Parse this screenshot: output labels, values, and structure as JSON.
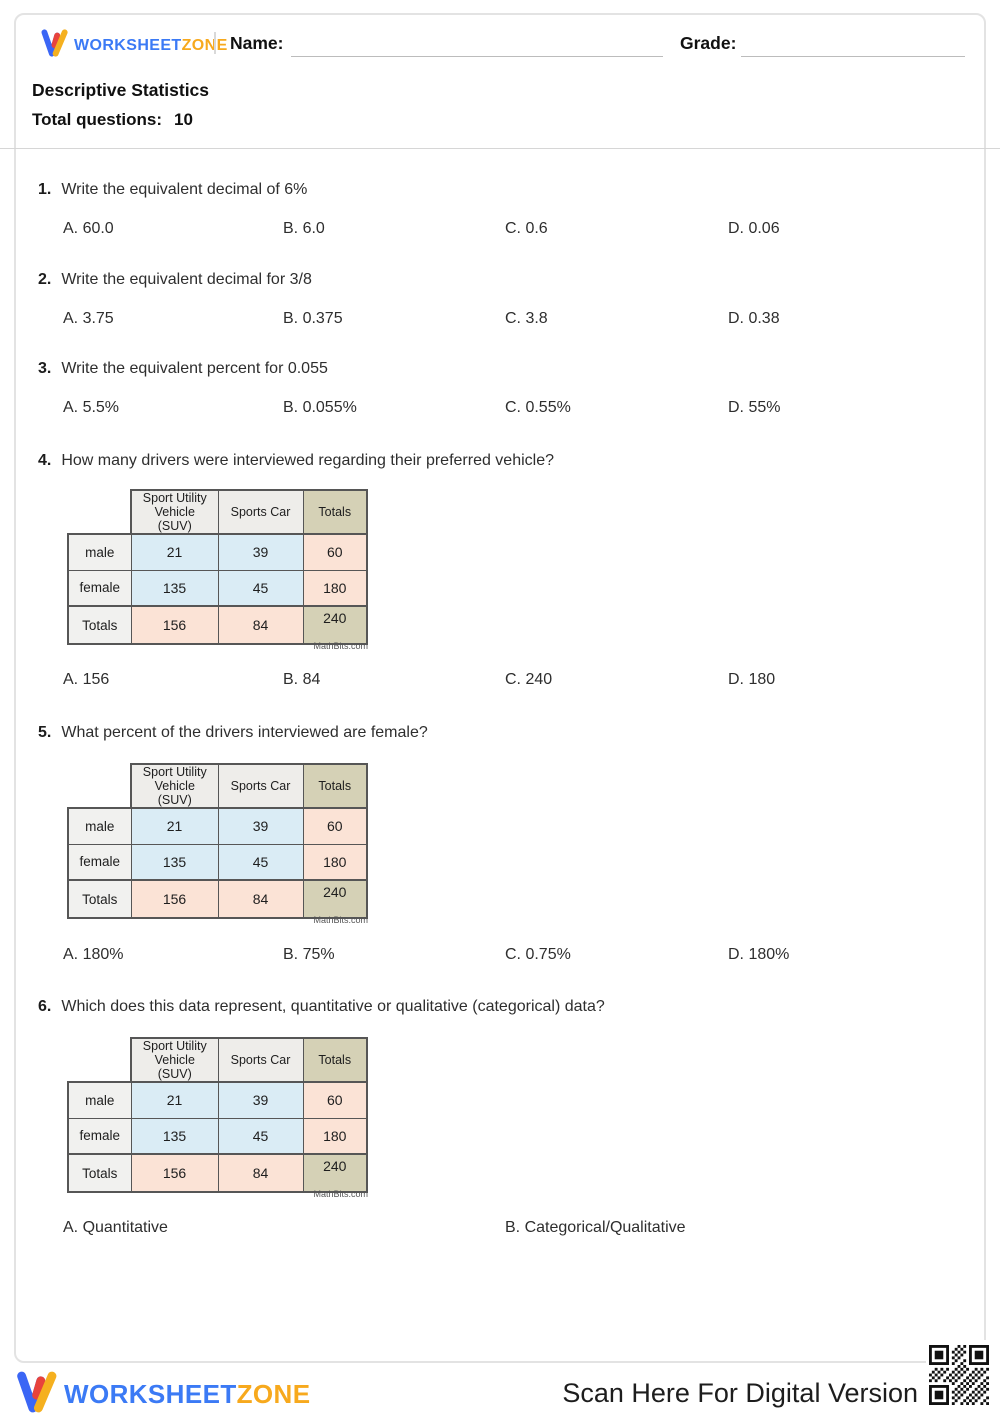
{
  "header": {
    "brand": {
      "word1": "WORKSHEET",
      "word2": "ZONE"
    },
    "name_label": "Name:",
    "grade_label": "Grade:"
  },
  "meta": {
    "title": "Descriptive Statistics",
    "total_questions_label": "Total questions:",
    "total_questions_value": "10"
  },
  "vehicle_table": {
    "col_headers": [
      "Sport Utility Vehicle (SUV)",
      "Sports Car",
      "Totals"
    ],
    "rows": [
      {
        "label": "male",
        "values": [
          "21",
          "39",
          "60"
        ]
      },
      {
        "label": "female",
        "values": [
          "135",
          "45",
          "180"
        ]
      },
      {
        "label": "Totals",
        "values": [
          "156",
          "84",
          "240"
        ]
      }
    ],
    "attribution": "MathBits.com"
  },
  "questions": [
    {
      "number": "1.",
      "text": "Write the equivalent decimal of 6%",
      "options": [
        "A. 60.0",
        "B. 6.0",
        "C. 0.6",
        "D. 0.06"
      ]
    },
    {
      "number": "2.",
      "text": "Write the equivalent decimal for 3/8",
      "options": [
        "A. 3.75",
        "B. 0.375",
        "C. 3.8",
        "D. 0.38"
      ]
    },
    {
      "number": "3.",
      "text": "Write the equivalent percent for 0.055",
      "options": [
        "A. 5.5%",
        "B. 0.055%",
        "C. 0.55%",
        "D. 55%"
      ]
    },
    {
      "number": "4.",
      "text": "How many drivers were interviewed regarding their preferred vehicle?",
      "options": [
        "A. 156",
        "B. 84",
        "C. 240",
        "D. 180"
      ]
    },
    {
      "number": "5.",
      "text": "What percent of the drivers interviewed are female?",
      "options": [
        "A. 180%",
        "B. 75%",
        "C. 0.75%",
        "D. 180%"
      ]
    },
    {
      "number": "6.",
      "text": "Which does this data represent, quantitative or qualitative (categorical) data?",
      "options": [
        "A. Quantitative",
        "B. Categorical/Qualitative"
      ]
    }
  ],
  "footer": {
    "brand": {
      "word1": "WORKSHEET",
      "word2": "ZONE"
    },
    "scan_text": "Scan Here For Digital Version"
  },
  "colors": {
    "brand_blue": "#3b7af5",
    "brand_orange": "#f7a91d",
    "table_header_gray": "#eeedea",
    "table_olive": "#d5d1b6",
    "table_blue": "#daecf5",
    "table_peach": "#fbe3d6"
  }
}
